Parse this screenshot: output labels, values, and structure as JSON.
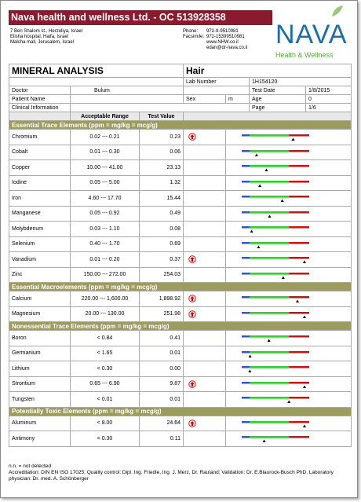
{
  "header": {
    "company": "Nava health and wellness Ltd. - OC 513928358",
    "address": [
      "7 Ben Shalom st., Herzeliya, Israel",
      "Elisha hospital, Haifa, Israel",
      "Malcha mall, Jerusalem, Israel"
    ],
    "contact": [
      {
        "label": "Phone:",
        "value": "972-9-9510981"
      },
      {
        "label": "Facsimile:",
        "value": "972-15399510981"
      },
      {
        "label": "",
        "value": "www.NHW.co.il"
      },
      {
        "label": "",
        "value": "edan@dr-nava.co.il"
      }
    ],
    "logo": "NAVA",
    "tagline": "Health & Wellness"
  },
  "report": {
    "title": "MINERAL ANALYSIS",
    "sample": "Hair",
    "lab_number_label": "Lab Number",
    "lab_number": "1H154120",
    "doctor_label": "Doctor",
    "doctor": "Bulum",
    "test_date_label": "Test Date",
    "test_date": "1/8/2015",
    "patient_label": "Patient Name",
    "sex_label": "Sex",
    "sex": "m",
    "age_label": "Age",
    "age": "0",
    "clinical_label": "Clinical Information",
    "page_label": "Page",
    "page": "1/6"
  },
  "table": {
    "columns": [
      "Acceptable Range",
      "Test Value"
    ],
    "sections": [
      {
        "title": "Essential Trace Elements (ppm = mg/kg = mcg/g)",
        "rows": [
          {
            "name": "Chromium",
            "range": "0.02 --- 0.21",
            "value": "0.23",
            "high": true
          },
          {
            "name": "Cobalt",
            "range": "0.01 --- 0.30",
            "value": "0.06",
            "high": false
          },
          {
            "name": "Copper",
            "range": "10.00 --- 41.00",
            "value": "23.13",
            "high": false
          },
          {
            "name": "Iodine",
            "range": "0.05 --- 5.00",
            "value": "1.32",
            "high": false
          },
          {
            "name": "Iron",
            "range": "4.60 --- 17.70",
            "value": "15.44",
            "high": false
          },
          {
            "name": "Manganese",
            "range": "0.05 --- 0.92",
            "value": "0.49",
            "high": false
          },
          {
            "name": "Molybdenum",
            "range": "0.03 --- 1.10",
            "value": "0.08",
            "high": false
          },
          {
            "name": "Selenium",
            "range": "0.40 --- 1.70",
            "value": "0.69",
            "high": false
          },
          {
            "name": "Vanadium",
            "range": "0.01 --- 0.20",
            "value": "0.37",
            "high": true
          },
          {
            "name": "Zinc",
            "range": "150.00 --- 272.00",
            "value": "254.03",
            "high": false
          }
        ]
      },
      {
        "title": "Essential Macroelements (ppm = mg/kg = mcg/g)",
        "rows": [
          {
            "name": "Calcium",
            "range": "220.00 --- 1,600.00",
            "value": "1,898.92",
            "high": true
          },
          {
            "name": "Magnesium",
            "range": "20.00 --- 130.00",
            "value": "251.98",
            "high": true
          }
        ]
      },
      {
        "title": "Nonessential Trace Elements (ppm = mg/kg = mcg/g)",
        "rows": [
          {
            "name": "Boron",
            "range": "< 0.84",
            "value": "0.41",
            "high": false
          },
          {
            "name": "Germanium",
            "range": "< 1.65",
            "value": "0.01",
            "high": false
          },
          {
            "name": "Lithium",
            "range": "< 0.30",
            "value": "0.00",
            "high": false
          },
          {
            "name": "Strontium",
            "range": "0.65 --- 6.90",
            "value": "9.87",
            "high": true
          },
          {
            "name": "Tungsten",
            "range": "< 0.01",
            "value": "0.01",
            "high": false
          }
        ]
      },
      {
        "title": "Potentially Toxic Elements (ppm = mg/kg = mcg/g)",
        "rows": [
          {
            "name": "Aluminum",
            "range": "< 8.00",
            "value": "24.64",
            "high": true
          },
          {
            "name": "Antimony",
            "range": "< 0.30",
            "value": "0.11",
            "high": false
          }
        ]
      }
    ]
  },
  "footer": [
    "n.n. = not detected",
    "Accreditation: DIN EN ISO 17025; Quality control: Dipl. Ing. Friedle, Ing. J. Merz, Dr. Rauland; Validation: Dr. E.Blaurock-Busch PhD, Laboratory physician: Dr. med. A. Schönberger"
  ]
}
